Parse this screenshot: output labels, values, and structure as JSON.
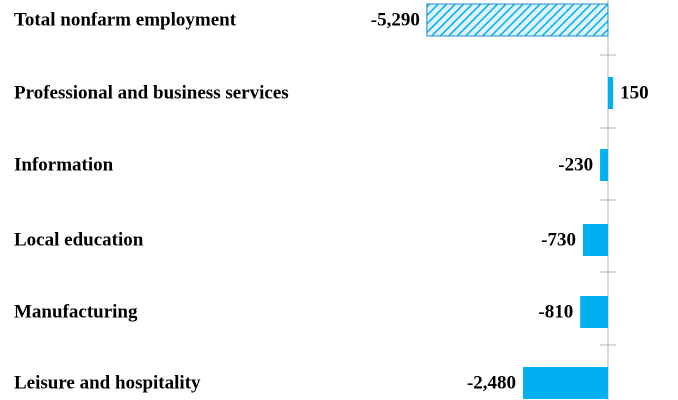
{
  "chart_data": {
    "type": "barh",
    "categories": [
      "Total nonfarm employment",
      "Professional and business services",
      "Information",
      "Local education",
      "Manufacturing",
      "Leisure and hospitality"
    ],
    "values": [
      -5290,
      150,
      -230,
      -730,
      -810,
      -2480
    ],
    "value_labels": [
      "-5,290",
      "150",
      "-230",
      "-730",
      "-810",
      "-2,480"
    ],
    "hatch": [
      true,
      false,
      false,
      false,
      false,
      false
    ],
    "color": "#00b0f0",
    "xlim": [
      -5300,
      200
    ]
  }
}
